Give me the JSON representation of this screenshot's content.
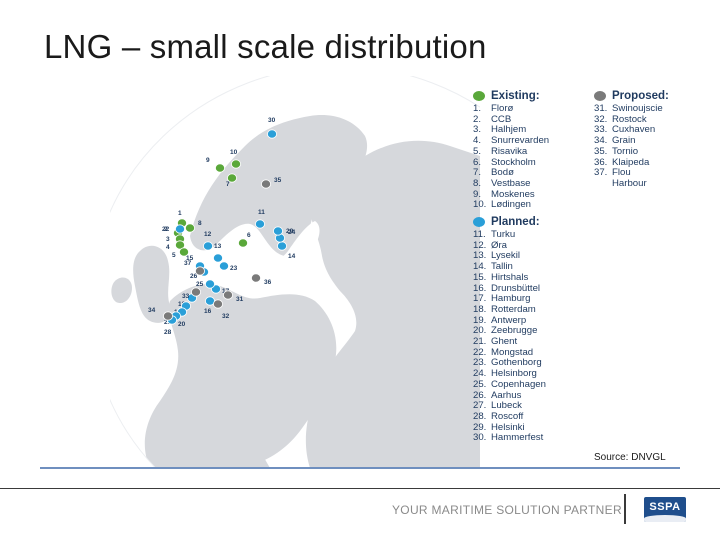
{
  "title": "LNG – small scale distribution",
  "legend": {
    "existing": {
      "heading": "Existing:",
      "color": "#5aa83a",
      "items": [
        {
          "n": "1.",
          "name": "Florø"
        },
        {
          "n": "2.",
          "name": "CCB"
        },
        {
          "n": "3.",
          "name": "Halhjem"
        },
        {
          "n": "4.",
          "name": "Snurrevarden"
        },
        {
          "n": "5.",
          "name": "Risavika"
        },
        {
          "n": "6.",
          "name": "Stockholm"
        },
        {
          "n": "7.",
          "name": "Bodø"
        },
        {
          "n": "8.",
          "name": "Vestbase"
        },
        {
          "n": "9.",
          "name": "Moskenes"
        },
        {
          "n": "10.",
          "name": "Lødingen"
        }
      ]
    },
    "planned": {
      "heading": "Planned:",
      "color": "#2a9fd8",
      "items": [
        {
          "n": "11.",
          "name": "Turku"
        },
        {
          "n": "12.",
          "name": "Øra"
        },
        {
          "n": "13.",
          "name": "Lysekil"
        },
        {
          "n": "14.",
          "name": "Tallin"
        },
        {
          "n": "15.",
          "name": "Hirtshals"
        },
        {
          "n": "16.",
          "name": "Drunsbüttel"
        },
        {
          "n": "17.",
          "name": "Hamburg"
        },
        {
          "n": "18.",
          "name": "Rotterdam"
        },
        {
          "n": "19.",
          "name": "Antwerp"
        },
        {
          "n": "20.",
          "name": "Zeebrugge"
        },
        {
          "n": "21.",
          "name": "Ghent"
        },
        {
          "n": "22.",
          "name": "Mongstad"
        },
        {
          "n": "23.",
          "name": "Gothenborg"
        },
        {
          "n": "24.",
          "name": "Helsinborg"
        },
        {
          "n": "25.",
          "name": "Copenhagen"
        },
        {
          "n": "26.",
          "name": "Aarhus"
        },
        {
          "n": "27.",
          "name": "Lubeck"
        },
        {
          "n": "28.",
          "name": "Roscoff"
        },
        {
          "n": "29.",
          "name": "Helsinki"
        },
        {
          "n": "30.",
          "name": "Hammerfest"
        }
      ]
    },
    "proposed": {
      "heading": "Proposed:",
      "color": "#7a7a7a",
      "items": [
        {
          "n": "31.",
          "name": "Swinoujscie"
        },
        {
          "n": "32.",
          "name": "Rostock"
        },
        {
          "n": "33.",
          "name": "Cuxhaven"
        },
        {
          "n": "34.",
          "name": "Grain"
        },
        {
          "n": "35.",
          "name": "Tornio"
        },
        {
          "n": "36.",
          "name": "Klaipeda"
        },
        {
          "n": "37.",
          "name": "Flou"
        },
        {
          "n": "",
          "name": "Harbour"
        }
      ]
    }
  },
  "markers": [
    {
      "label": "1",
      "type": "existing"
    },
    {
      "label": "2",
      "type": "existing"
    },
    {
      "label": "3",
      "type": "existing"
    },
    {
      "label": "4",
      "type": "existing"
    },
    {
      "label": "5",
      "type": "existing"
    },
    {
      "label": "6",
      "type": "existing"
    },
    {
      "label": "7",
      "type": "existing"
    },
    {
      "label": "8",
      "type": "existing"
    },
    {
      "label": "9",
      "type": "existing"
    },
    {
      "label": "10",
      "type": "existing"
    },
    {
      "label": "11",
      "type": "planned"
    },
    {
      "label": "12",
      "type": "planned"
    },
    {
      "label": "13",
      "type": "planned"
    },
    {
      "label": "14",
      "type": "planned"
    },
    {
      "label": "15",
      "type": "planned"
    },
    {
      "label": "16",
      "type": "planned"
    },
    {
      "label": "17",
      "type": "planned"
    },
    {
      "label": "18",
      "type": "planned"
    },
    {
      "label": "19",
      "type": "planned"
    },
    {
      "label": "20",
      "type": "planned"
    },
    {
      "label": "21",
      "type": "planned"
    },
    {
      "label": "22",
      "type": "planned"
    },
    {
      "label": "23",
      "type": "planned"
    },
    {
      "label": "24",
      "type": "planned"
    },
    {
      "label": "25",
      "type": "planned"
    },
    {
      "label": "26",
      "type": "planned"
    },
    {
      "label": "28",
      "type": "planned"
    },
    {
      "label": "29",
      "type": "planned"
    },
    {
      "label": "30",
      "type": "planned"
    },
    {
      "label": "31",
      "type": "proposed"
    },
    {
      "label": "32",
      "type": "proposed"
    },
    {
      "label": "33",
      "type": "proposed"
    },
    {
      "label": "34",
      "type": "proposed"
    },
    {
      "label": "35",
      "type": "proposed"
    },
    {
      "label": "36",
      "type": "proposed"
    },
    {
      "label": "37",
      "type": "proposed"
    }
  ],
  "source": "Source: DNVGL",
  "footer": {
    "tagline": "YOUR MARITIME SOLUTION PARTNER",
    "logo_text": "SSPA"
  },
  "colors": {
    "land": "#d6d8dc",
    "sea": "#ffffff",
    "rule": "#6f8fbf"
  }
}
